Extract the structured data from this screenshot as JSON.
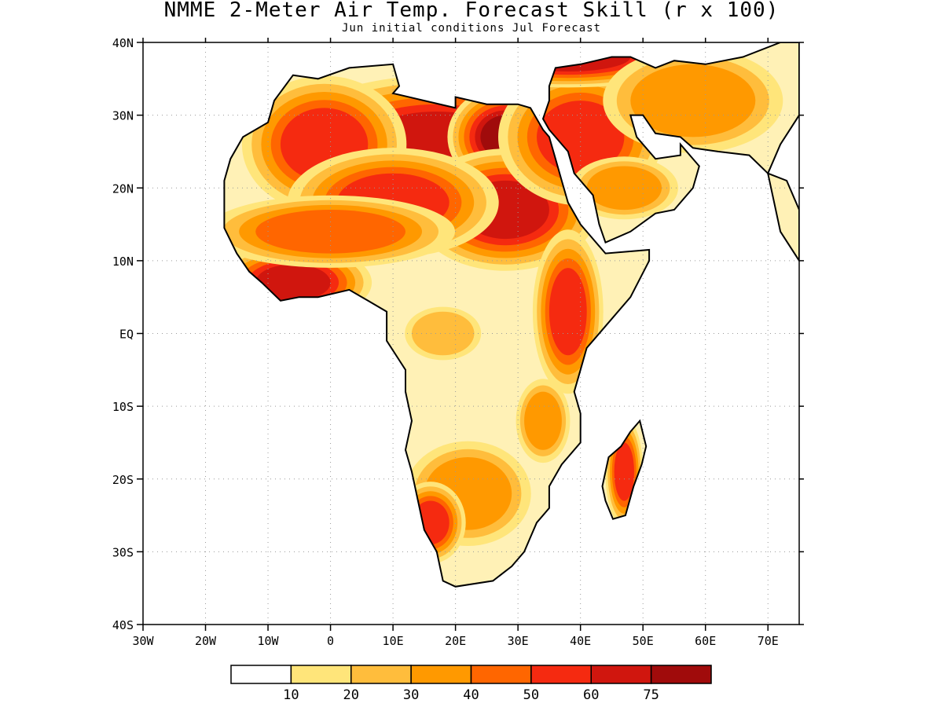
{
  "title": "NMME 2-Meter Air Temp. Forecast Skill (r x 100)",
  "subtitle": "Jun initial conditions  Jul Forecast",
  "map": {
    "lon_range": [
      -30,
      75
    ],
    "lat_range": [
      -40,
      40
    ],
    "grid": true,
    "lon_ticks": [
      "30W",
      "20W",
      "10W",
      "0",
      "10E",
      "20E",
      "30E",
      "40E",
      "50E",
      "60E",
      "70E"
    ],
    "lat_ticks": [
      "40N",
      "30N",
      "20N",
      "10N",
      "EQ",
      "10S",
      "20S",
      "30S",
      "40S"
    ]
  },
  "colorbar": {
    "colors": [
      "#ffffff",
      "#ffe57a",
      "#ffbd3c",
      "#ff9900",
      "#ff6600",
      "#f52a10",
      "#d0160e",
      "#a00b0b"
    ],
    "labels": [
      "10",
      "20",
      "30",
      "40",
      "50",
      "60",
      "75"
    ]
  },
  "regions": [
    {
      "name": "sahara-central",
      "lon": 17,
      "lat": 26,
      "rx": 12,
      "ry": 4.5,
      "level": 6
    },
    {
      "name": "sahara-west",
      "lon": -1,
      "lat": 26,
      "rx": 7,
      "ry": 5,
      "level": 5
    },
    {
      "name": "egypt-libya",
      "lon": 28,
      "lat": 27,
      "rx": 4,
      "ry": 3,
      "level": 7
    },
    {
      "name": "sudan",
      "lon": 28,
      "lat": 17,
      "rx": 7,
      "ry": 4,
      "level": 6
    },
    {
      "name": "chad-niger",
      "lon": 10,
      "lat": 18,
      "rx": 9,
      "ry": 4,
      "level": 5
    },
    {
      "name": "west-africa-coast",
      "lon": -6,
      "lat": 7,
      "rx": 6,
      "ry": 2.5,
      "level": 6
    },
    {
      "name": "sahel",
      "lon": 0,
      "lat": 14,
      "rx": 12,
      "ry": 3,
      "level": 4
    },
    {
      "name": "east-africa",
      "lon": 38,
      "lat": 3,
      "rx": 3,
      "ry": 6,
      "level": 5
    },
    {
      "name": "congo",
      "lon": 18,
      "lat": 0,
      "rx": 5,
      "ry": 3,
      "level": 2
    },
    {
      "name": "arabia-north",
      "lon": 40,
      "lat": 27,
      "rx": 7,
      "ry": 5,
      "level": 5
    },
    {
      "name": "arabia-south",
      "lon": 47,
      "lat": 20,
      "rx": 6,
      "ry": 3,
      "level": 3
    },
    {
      "name": "turkey-levant",
      "lon": 38,
      "lat": 38,
      "rx": 10,
      "ry": 2,
      "level": 6
    },
    {
      "name": "iran",
      "lon": 58,
      "lat": 32,
      "rx": 10,
      "ry": 5,
      "level": 3
    },
    {
      "name": "madagascar",
      "lon": 47,
      "lat": -19,
      "rx": 1.6,
      "ry": 4,
      "level": 5
    },
    {
      "name": "southern-africa",
      "lon": 22,
      "lat": -22,
      "rx": 7,
      "ry": 5,
      "level": 3
    },
    {
      "name": "mozambique",
      "lon": 34,
      "lat": -12,
      "rx": 3,
      "ry": 4,
      "level": 3
    },
    {
      "name": "namibia-coast",
      "lon": 16,
      "lat": -26,
      "rx": 3,
      "ry": 3,
      "level": 5
    }
  ]
}
